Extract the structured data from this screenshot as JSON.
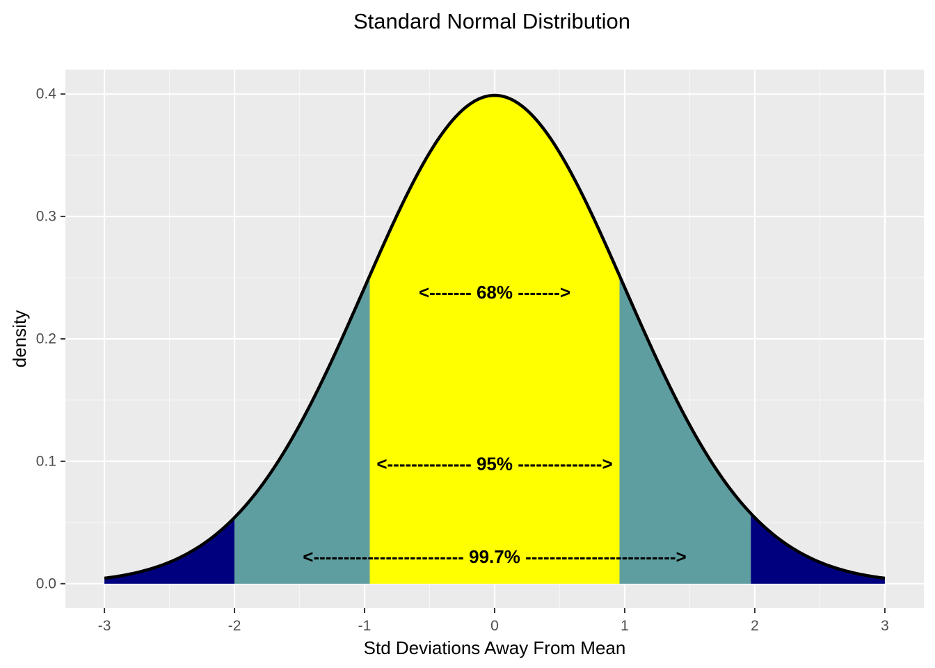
{
  "chart_data": {
    "type": "area",
    "title": "Standard Normal Distribution",
    "xlabel": "Std Deviations Away From Mean",
    "ylabel": "density",
    "xlim": [
      -3.3,
      3.3
    ],
    "ylim": [
      -0.02,
      0.42
    ],
    "x_ticks": [
      -3,
      -2,
      -1,
      0,
      1,
      2,
      3
    ],
    "x_tick_labels": [
      "-3",
      "-2",
      "-1",
      "0",
      "1",
      "2",
      "3"
    ],
    "y_ticks": [
      0.0,
      0.1,
      0.2,
      0.3,
      0.4
    ],
    "y_tick_labels": [
      "0.0",
      "0.1",
      "0.2",
      "0.3",
      "0.4"
    ],
    "grid": true,
    "curve": {
      "function": "standard normal density",
      "mean": 0,
      "sd": 1,
      "x_range": [
        -3,
        3
      ],
      "color": "#000000"
    },
    "regions": [
      {
        "from": -3,
        "to": -2,
        "color": "#00007f"
      },
      {
        "from": -2,
        "to": -0.96,
        "color": "#5f9ea0"
      },
      {
        "from": -0.96,
        "to": 0.96,
        "color": "#ffff00"
      },
      {
        "from": 0.96,
        "to": 1.97,
        "color": "#5f9ea0"
      },
      {
        "from": 1.97,
        "to": 3,
        "color": "#00007f"
      }
    ],
    "annotations": [
      {
        "text": "<------- 68% ------->",
        "x": 0,
        "y": 0.238
      },
      {
        "text": "<-------------- 95% -------------->",
        "x": 0,
        "y": 0.098
      },
      {
        "text": "<------------------------- 99.7% ------------------------->",
        "x": 0,
        "y": 0.022
      }
    ],
    "colors": {
      "panel": "#ebebeb",
      "grid_major": "#ffffff",
      "grid_minor": "#f5f5f5",
      "tick_text": "#4d4d4d"
    }
  }
}
